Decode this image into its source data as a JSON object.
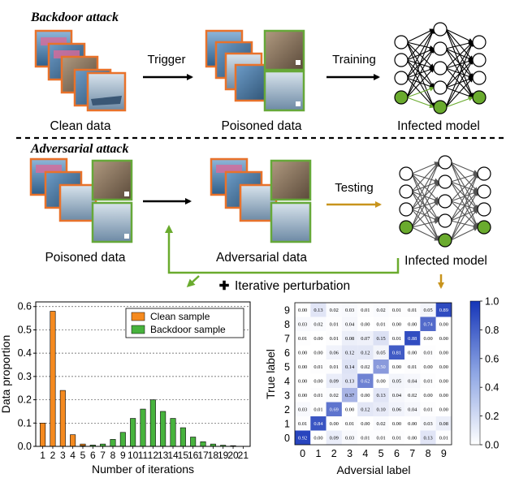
{
  "diagram": {
    "section_top_title": "Backdoor attack",
    "section_mid_title": "Adversarial attack",
    "labels": {
      "clean_data": "Clean data",
      "poisoned_data_top": "Poisoned data",
      "infected_model_top": "Infected model",
      "poisoned_data_mid": "Poisoned data",
      "adversarial_data": "Adversarial data",
      "infected_model_mid": "Infected model",
      "trigger": "Trigger",
      "training": "Training",
      "testing": "Testing",
      "iterative_perturbation": "Iterative perturbation",
      "plus_symbol": "✚"
    },
    "colors": {
      "orange_frame": "#e8722b",
      "green_frame": "#66a839",
      "green_node": "#6aab2e",
      "gold_arrow": "#c8941d",
      "green_arrow": "#6aab2e",
      "dashed_line": "#000000"
    },
    "image_icons": [
      "plane-image",
      "car-image",
      "cat-image",
      "ship-image",
      "automobile-image"
    ]
  },
  "chart_data": [
    {
      "type": "bar",
      "xlabel": "Number of iterations",
      "ylabel": "Data proportion",
      "categories": [
        "1",
        "2",
        "3",
        "4",
        "5",
        "6",
        "7",
        "8",
        "9",
        "10",
        "11",
        "12",
        "13",
        "14",
        "15",
        "16",
        "17",
        "18",
        "19",
        "20",
        "21"
      ],
      "ylim": [
        0,
        0.6
      ],
      "yticks": [
        "0.0",
        "0.1",
        "0.2",
        "0.3",
        "0.4",
        "0.5",
        "0.6"
      ],
      "grid": "horizontal-dashed",
      "legend_position": "top-right",
      "series": [
        {
          "name": "Clean sample",
          "color": "#f58a1f",
          "values": [
            0.1,
            0.58,
            0.24,
            0.05,
            0.01,
            0.005,
            0,
            0,
            0,
            0,
            0,
            0,
            0,
            0,
            0,
            0,
            0,
            0,
            0,
            0,
            0
          ]
        },
        {
          "name": "Backdoor sample",
          "color": "#47b33d",
          "values": [
            0,
            0,
            0,
            0,
            0.003,
            0.005,
            0.01,
            0.03,
            0.06,
            0.12,
            0.16,
            0.2,
            0.15,
            0.12,
            0.08,
            0.04,
            0.02,
            0.01,
            0.005,
            0.003,
            0
          ]
        }
      ]
    },
    {
      "type": "heatmap",
      "xlabel": "Adversial label",
      "ylabel": "True label",
      "x_ticks": [
        "0",
        "1",
        "2",
        "3",
        "4",
        "5",
        "6",
        "7",
        "8",
        "9"
      ],
      "y_ticks": [
        "0",
        "1",
        "2",
        "3",
        "4",
        "5",
        "6",
        "7",
        "8",
        "9"
      ],
      "colorbar_ticks": [
        "0.0",
        "0.2",
        "0.4",
        "0.6",
        "0.8",
        "1.0"
      ],
      "colorbar_range": [
        0,
        1
      ],
      "matrix": [
        [
          "0.92",
          "0.00",
          "0.09",
          "0.03",
          "0.01",
          "0.01",
          "0.01",
          "0.00",
          "0.13",
          "0.01"
        ],
        [
          "0.01",
          "0.84",
          "0.00",
          "0.01",
          "0.00",
          "0.02",
          "0.00",
          "0.00",
          "0.03",
          "0.08"
        ],
        [
          "0.03",
          "0.01",
          "0.69",
          "0.00",
          "0.12",
          "0.10",
          "0.06",
          "0.04",
          "0.01",
          "0.00"
        ],
        [
          "0.00",
          "0.01",
          "0.02",
          "0.37",
          "0.00",
          "0.13",
          "0.04",
          "0.02",
          "0.00",
          "0.00"
        ],
        [
          "0.00",
          "0.00",
          "0.09",
          "0.13",
          "0.62",
          "0.00",
          "0.05",
          "0.04",
          "0.01",
          "0.00"
        ],
        [
          "0.00",
          "0.01",
          "0.01",
          "0.14",
          "0.02",
          "0.50",
          "0.00",
          "0.01",
          "0.00",
          "0.00"
        ],
        [
          "0.00",
          "0.00",
          "0.06",
          "0.12",
          "0.12",
          "0.05",
          "0.81",
          "0.00",
          "0.01",
          "0.00"
        ],
        [
          "0.01",
          "0.00",
          "0.01",
          "0.08",
          "0.07",
          "0.15",
          "0.01",
          "0.88",
          "0.00",
          "0.00"
        ],
        [
          "0.03",
          "0.02",
          "0.01",
          "0.04",
          "0.00",
          "0.01",
          "0.00",
          "0.00",
          "0.74",
          "0.00"
        ],
        [
          "0.00",
          "0.13",
          "0.02",
          "0.03",
          "0.01",
          "0.02",
          "0.01",
          "0.01",
          "0.05",
          "0.89"
        ]
      ]
    }
  ]
}
